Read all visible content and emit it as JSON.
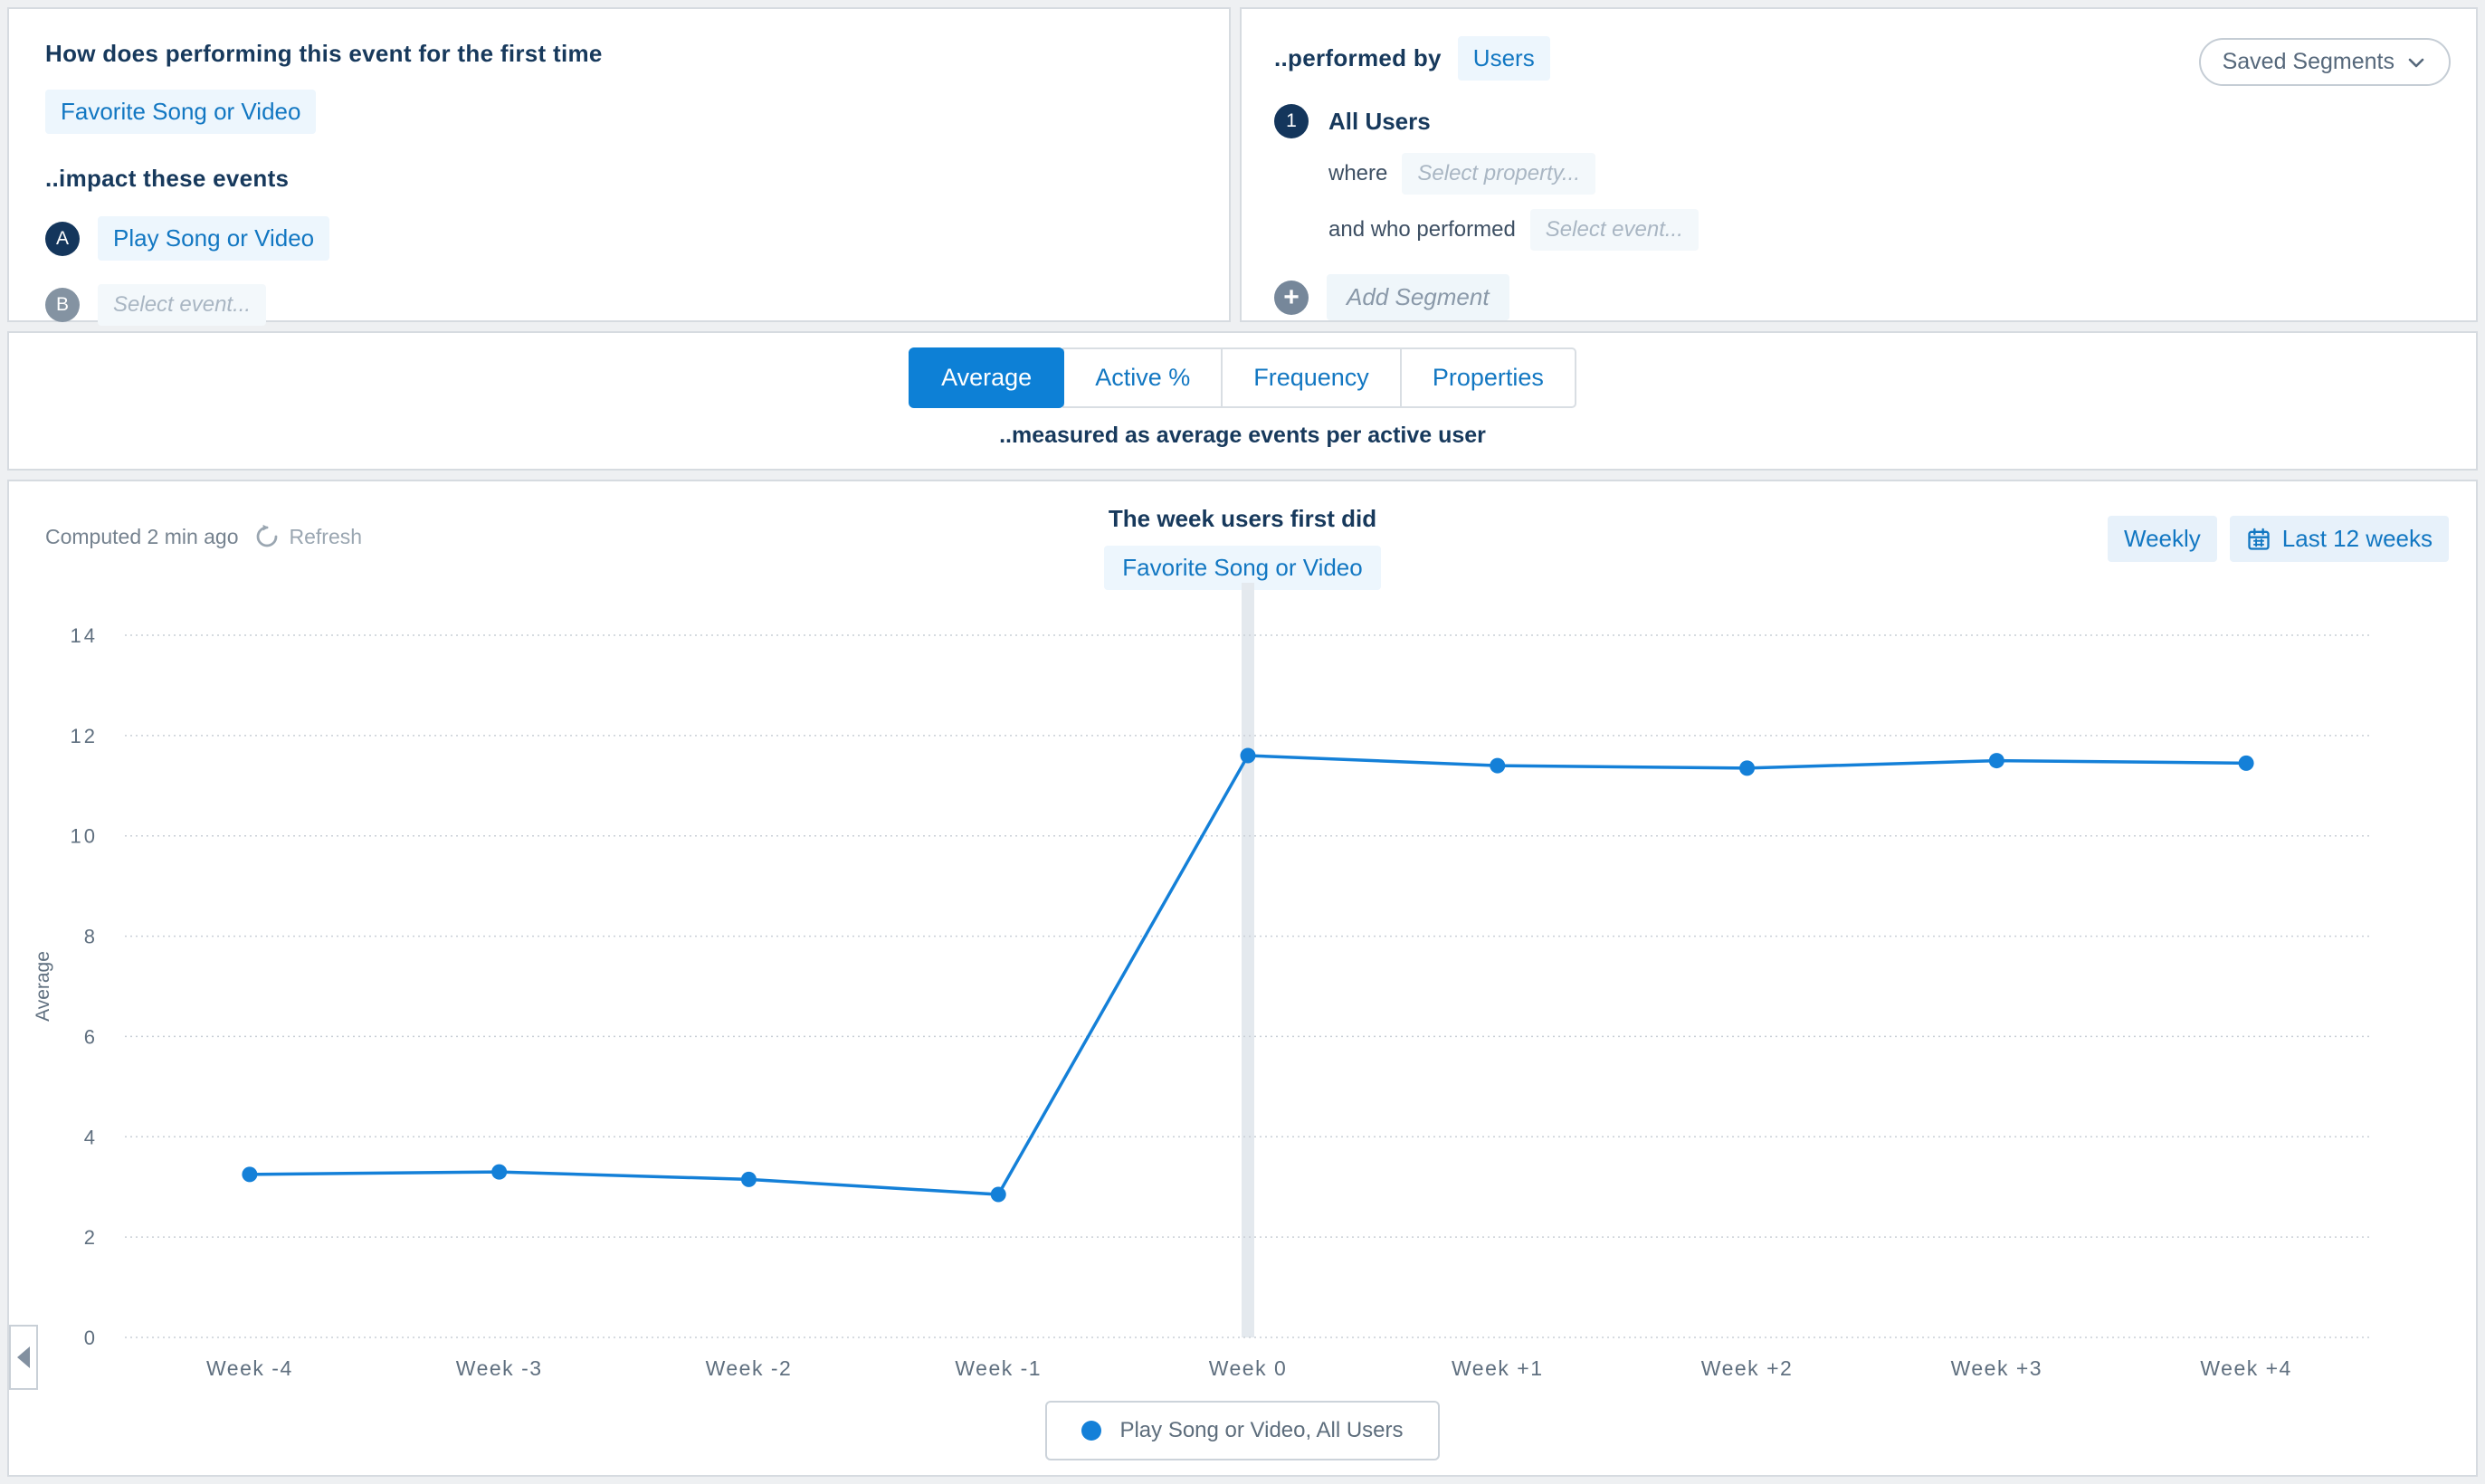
{
  "impact_query": {
    "heading": "How does performing this event for the first time",
    "first_event": "Favorite Song or Video",
    "subheading": "..impact these events",
    "events": [
      {
        "badge": "A",
        "label": "Play Song or Video",
        "state": "selected"
      },
      {
        "badge": "B",
        "label": "Select event...",
        "state": "placeholder"
      }
    ]
  },
  "segment_panel": {
    "heading": "..performed by",
    "performed_by": "Users",
    "saved_segments_label": "Saved Segments",
    "segments": [
      {
        "badge": "1",
        "name": "All Users",
        "where_label": "where",
        "where_placeholder": "Select property...",
        "performed_label": "and who performed",
        "performed_placeholder": "Select event..."
      }
    ],
    "add_badge": "+",
    "add_segment_label": "Add Segment"
  },
  "measure_tabs": {
    "tabs": [
      {
        "label": "Average",
        "active": true
      },
      {
        "label": "Active %",
        "active": false
      },
      {
        "label": "Frequency",
        "active": false
      },
      {
        "label": "Properties",
        "active": false
      }
    ],
    "caption": "..measured as average events per active user"
  },
  "chart_panel": {
    "computed_label": "Computed 2 min ago",
    "refresh_label": "Refresh",
    "title": "The week users first did",
    "subtitle": "Favorite Song or Video",
    "granularity_label": "Weekly",
    "range_label": "Last 12 weeks",
    "legend": "Play Song or Video, All Users"
  },
  "chart_data": {
    "type": "line",
    "x": [
      "Week -4",
      "Week -3",
      "Week -2",
      "Week -1",
      "Week 0",
      "Week +1",
      "Week +2",
      "Week +3",
      "Week +4"
    ],
    "series": [
      {
        "name": "Play Song or Video, All Users",
        "values": [
          3.25,
          3.3,
          3.15,
          2.85,
          11.6,
          11.4,
          11.35,
          11.5,
          11.45
        ]
      }
    ],
    "title": "The week users first did Favorite Song or Video",
    "xlabel": "",
    "ylabel": "Average",
    "ylim": [
      0,
      14
    ],
    "yticks": [
      0,
      2,
      4,
      6,
      8,
      10,
      12,
      14
    ],
    "grid": "horizontal-dashed",
    "highlight_x": "Week 0",
    "legend_position": "bottom-center",
    "line_color": "#1480d8",
    "marker": "filled-circle"
  },
  "icons": {
    "refresh": "circular-arrow",
    "calendar": "calendar-grid",
    "chevron_down": "chevron-down",
    "add": "plus",
    "collapse": "triangle-left"
  },
  "colors": {
    "accent_blue": "#0d80d6",
    "link_blue": "#1277c2",
    "navy_text": "#17395c",
    "light_blue_bg": "#edf6fd",
    "placeholder_text": "#a9b6c3",
    "muted_text": "#5f6f7f",
    "line_blue": "#1480d8",
    "gridline": "#c9cfd6",
    "highlight_band": "#e4e9ee",
    "panel_border": "#d6dbe0",
    "page_bg": "#eef0f2"
  }
}
